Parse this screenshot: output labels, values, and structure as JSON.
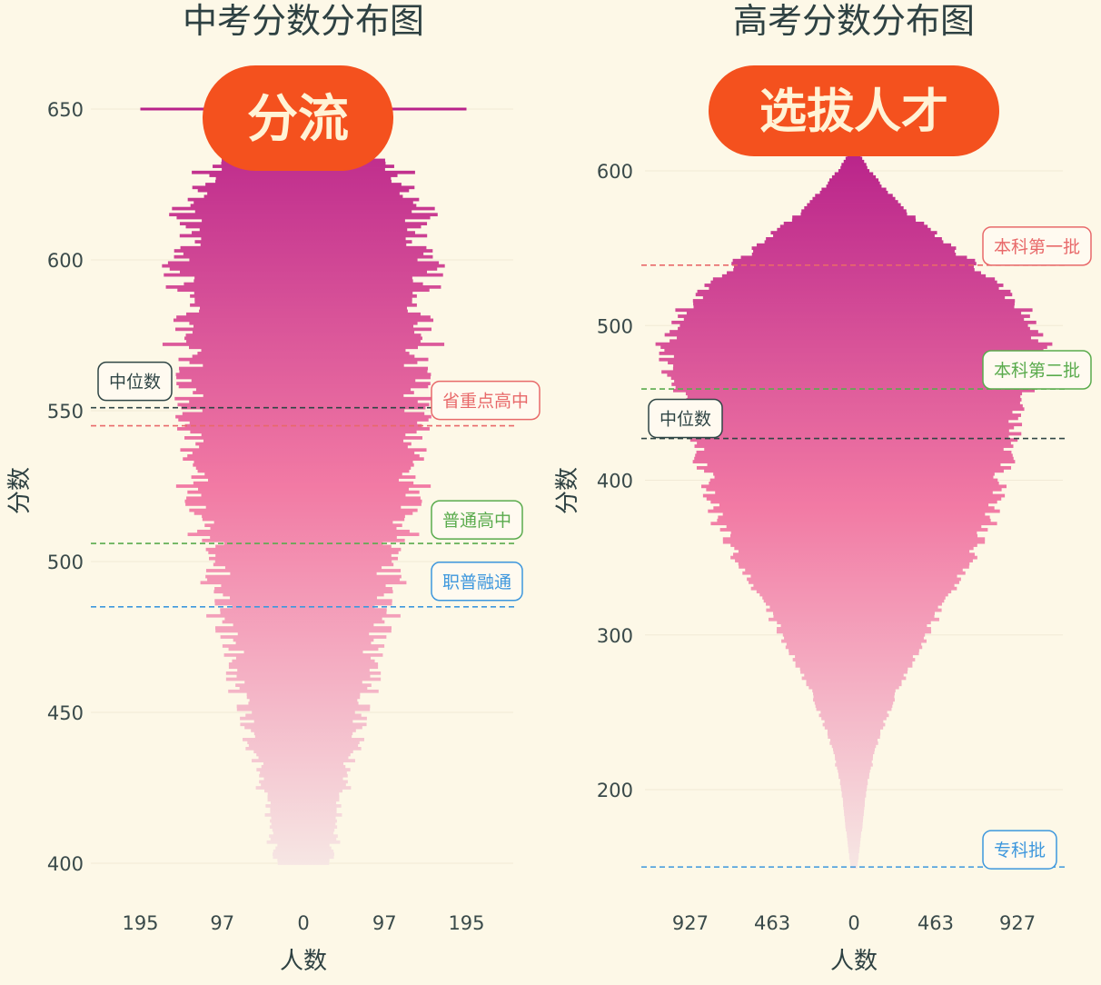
{
  "colors": {
    "background": "#fdf8e7",
    "gradient_top": "#b8228a",
    "gradient_mid": "#f27aa4",
    "gradient_bottom": "#f6e7e4",
    "median": "#2f4545",
    "red_line": "#e8696a",
    "green_line": "#5aab4d",
    "blue_line": "#3d97dd",
    "badge": "#f4511e",
    "badge_text": "#fff3d6",
    "axis_text": "#3a4a4a",
    "title_text": "#2e4142"
  },
  "chart_data": [
    {
      "type": "bar",
      "orientation": "mirrored-horizontal",
      "title": "中考分数分布图",
      "badge": "分流",
      "xlabel": "人数",
      "ylabel": "分数",
      "ylim": [
        390,
        658
      ],
      "xlim": [
        -245,
        245
      ],
      "yticks": [
        400,
        450,
        500,
        550,
        600,
        650
      ],
      "xticks": [
        {
          "value": -195,
          "label": "195"
        },
        {
          "value": -97,
          "label": "97"
        },
        {
          "value": 0,
          "label": "0"
        },
        {
          "value": 97,
          "label": "97"
        },
        {
          "value": 195,
          "label": "195"
        }
      ],
      "distribution": {
        "score_range": [
          400,
          650
        ],
        "count_knots": [
          [
            400,
            32
          ],
          [
            420,
            45
          ],
          [
            440,
            62
          ],
          [
            460,
            78
          ],
          [
            480,
            95
          ],
          [
            500,
            108
          ],
          [
            520,
            130
          ],
          [
            540,
            140
          ],
          [
            560,
            138
          ],
          [
            580,
            145
          ],
          [
            600,
            150
          ],
          [
            620,
            140
          ],
          [
            630,
            110
          ],
          [
            640,
            60
          ],
          [
            645,
            35
          ]
        ],
        "spike": {
          "score": 650,
          "count": 195
        }
      },
      "reference_lines": [
        {
          "label": "中位数",
          "score": 551,
          "color": "#2f4545",
          "label_side": "left"
        },
        {
          "label": "省重点高中",
          "score": 545,
          "color": "#e8696a",
          "label_side": "right"
        },
        {
          "label": "普通高中",
          "score": 506,
          "color": "#5aab4d",
          "label_side": "right"
        },
        {
          "label": "职普融通",
          "score": 485,
          "color": "#3d97dd",
          "label_side": "right"
        }
      ]
    },
    {
      "type": "bar",
      "orientation": "mirrored-horizontal",
      "title": "高考分数分布图",
      "badge": "选拔人才",
      "xlabel": "人数",
      "ylabel": "分数",
      "ylim": [
        135,
        630
      ],
      "xlim": [
        -1080,
        1080
      ],
      "yticks": [
        200,
        300,
        400,
        500,
        600
      ],
      "xticks": [
        {
          "value": -927,
          "label": "927"
        },
        {
          "value": -463,
          "label": "463"
        },
        {
          "value": 0,
          "label": "0"
        },
        {
          "value": 463,
          "label": "463"
        },
        {
          "value": 927,
          "label": "927"
        }
      ],
      "distribution": {
        "score_range": [
          150,
          615
        ],
        "count_knots": [
          [
            150,
            20
          ],
          [
            170,
            40
          ],
          [
            200,
            70
          ],
          [
            230,
            130
          ],
          [
            260,
            230
          ],
          [
            290,
            360
          ],
          [
            320,
            510
          ],
          [
            350,
            680
          ],
          [
            380,
            790
          ],
          [
            410,
            860
          ],
          [
            440,
            930
          ],
          [
            470,
            1040
          ],
          [
            490,
            1080
          ],
          [
            510,
            970
          ],
          [
            530,
            780
          ],
          [
            550,
            560
          ],
          [
            570,
            330
          ],
          [
            590,
            160
          ],
          [
            605,
            60
          ],
          [
            615,
            15
          ]
        ]
      },
      "reference_lines": [
        {
          "label": "本科第一批",
          "score": 539,
          "color": "#e8696a",
          "label_side": "right"
        },
        {
          "label": "本科第二批",
          "score": 459,
          "color": "#5aab4d",
          "label_side": "right"
        },
        {
          "label": "中位数",
          "score": 427,
          "color": "#2f4545",
          "label_side": "left"
        },
        {
          "label": "专科批",
          "score": 150,
          "color": "#3d97dd",
          "label_side": "right"
        }
      ]
    }
  ]
}
